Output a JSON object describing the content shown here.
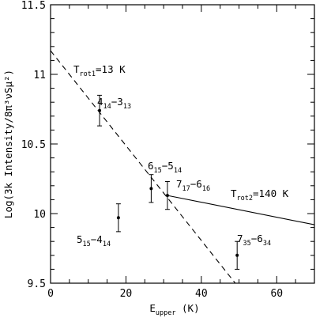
{
  "chart_data": {
    "type": "scatter",
    "title": "",
    "xlabel": {
      "main": "E",
      "sub": "upper",
      "rest": " (K)"
    },
    "ylabel": "Log(3k Intensity/8π³νSμ²)",
    "xlim": [
      0,
      70
    ],
    "ylim": [
      9.5,
      11.5
    ],
    "x_ticks": [
      0,
      20,
      40,
      60
    ],
    "y_ticks": [
      9.5,
      10,
      10.5,
      11,
      11.5
    ],
    "x_tick_labels": [
      "0",
      "20",
      "40",
      "60"
    ],
    "y_tick_labels": [
      "9.5",
      "10",
      "10.5",
      "11",
      "11.5"
    ],
    "grid": false,
    "points": [
      {
        "label": "4₁₄–3₁₃",
        "x": 13,
        "y": 10.74,
        "yerr": 0.11
      },
      {
        "label": "5₁₅–4₁₄",
        "x": 18,
        "y": 9.97,
        "yerr": 0.1
      },
      {
        "label": "6₁₅–5₁₄",
        "x": 26.7,
        "y": 10.18,
        "yerr": 0.1
      },
      {
        "label": "7₁₇–6₁₆",
        "x": 31,
        "y": 10.13,
        "yerr": 0.1
      },
      {
        "label": "7₃₅–6₃₄",
        "x": 49.5,
        "y": 9.7,
        "yerr": 0.1
      }
    ],
    "fits": [
      {
        "name": "T_rot1=13 K",
        "style": "dashed",
        "x": [
          0,
          49
        ],
        "y": [
          11.17,
          9.5
        ]
      },
      {
        "name": "T_rot2=140 K",
        "style": "solid",
        "x": [
          31,
          70
        ],
        "y": [
          10.13,
          9.92
        ]
      }
    ],
    "annotations": [
      {
        "main": "T",
        "sub": "rot1",
        "rest": "=13 K"
      },
      {
        "main": "T",
        "sub": "rot2",
        "rest": "=140 K"
      },
      {
        "parts": [
          [
            "4",
            ""
          ],
          [
            "14",
            "sub"
          ],
          [
            "−3",
            ""
          ],
          [
            "13",
            "sub"
          ]
        ]
      },
      {
        "parts": [
          [
            "6",
            ""
          ],
          [
            "15",
            "sub"
          ],
          [
            "−5",
            ""
          ],
          [
            "14",
            "sub"
          ]
        ]
      },
      {
        "parts": [
          [
            "7",
            ""
          ],
          [
            "17",
            "sub"
          ],
          [
            "−6",
            ""
          ],
          [
            "16",
            "sub"
          ]
        ]
      },
      {
        "parts": [
          [
            "5",
            ""
          ],
          [
            "15",
            "sub"
          ],
          [
            "−4",
            ""
          ],
          [
            "14",
            "sub"
          ]
        ]
      },
      {
        "parts": [
          [
            "7",
            ""
          ],
          [
            "35",
            "sub"
          ],
          [
            "−6",
            ""
          ],
          [
            "34",
            "sub"
          ]
        ]
      }
    ]
  }
}
